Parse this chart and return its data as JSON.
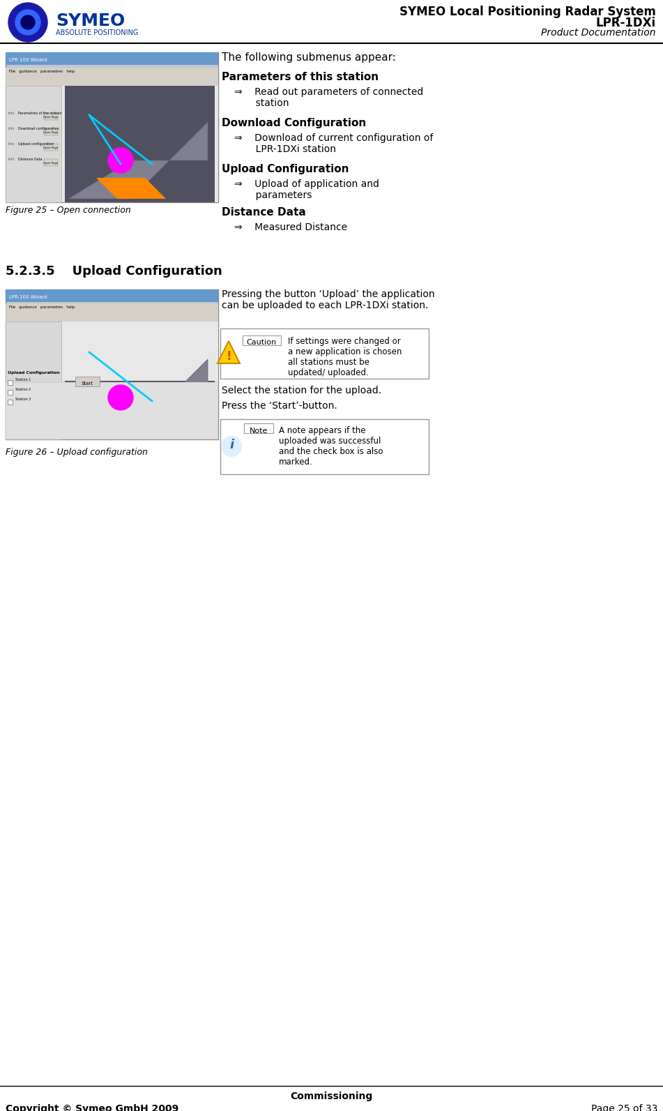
{
  "header_title_line1": "SYMEO Local Positioning Radar System",
  "header_title_line2": "LPR-1DXi",
  "header_title_line3": "Product Documentation",
  "footer_center": "Commissioning",
  "footer_left": "Copyright © Symeo GmbH 2009",
  "footer_right": "Page 25 of 33",
  "divider_color": "#000000",
  "bg_color": "#ffffff",
  "section_heading": "5.2.3.5    Upload Configuration",
  "fig25_caption": "Figure 25 – Open connection",
  "fig26_caption": "Figure 26 – Upload configuration",
  "right_col_texts": [
    "The following submenus appear:",
    "Parameters of this station",
    "⇒    Read out parameters of connected\n       station",
    "Download Configuration",
    "⇒    Download of current configuration of\n       LPR-1DXi station",
    "Upload Configuration",
    "⇒    Upload of application and\n       parameters",
    "Distance Data",
    "⇒    Measured Distance"
  ],
  "upload_text1": "Pressing the button ‘Upload’ the application\ncan be uploaded to each LPR-1DXi station.",
  "caution_label": "Caution",
  "caution_text": "If settings were changed or\na new application is chosen\nall stations must be\nupdated/ uploaded.",
  "select_text": "Select the station for the upload.",
  "press_text": "Press the ‘Start’-button.",
  "note_label": "Note",
  "note_text": "A note appears if the\nuploaded was successful\nand the check box is also\nmarked.",
  "symeo_blue": "#003399",
  "header_bg": "#ffffff",
  "screenshot_bg": "#c0c8d0",
  "screenshot_border": "#888888"
}
